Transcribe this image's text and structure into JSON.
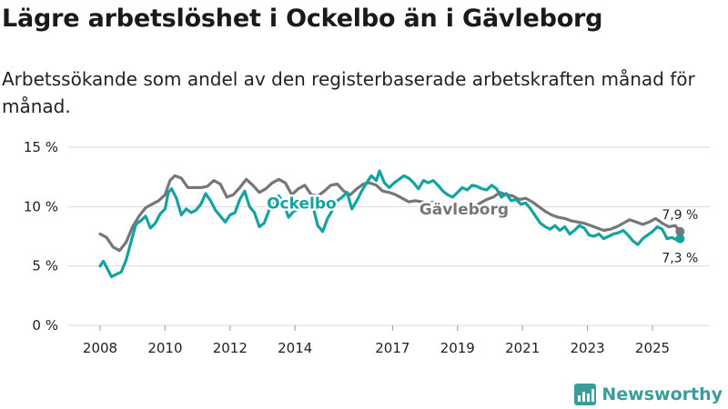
{
  "title": "Lägre arbetslöshet i Ockelbo än i Gävleborg",
  "subtitle": "Arbetssökande som andel av den registerbaserade arbetskraften månad för månad.",
  "brand": "Newsworthy",
  "colors": {
    "ockelbo": "#14a3a0",
    "gavleborg": "#777777",
    "grid": "#d9d9d9"
  },
  "chart_data": {
    "type": "line",
    "x_unit": "year (decimal)",
    "xlim": [
      2008,
      2026
    ],
    "ylim": [
      0,
      15
    ],
    "grid": true,
    "y_ticks": [
      {
        "value": 0,
        "label": "0 %"
      },
      {
        "value": 5,
        "label": "5 %"
      },
      {
        "value": 10,
        "label": "10 %"
      },
      {
        "value": 15,
        "label": "15 %"
      }
    ],
    "x_ticks": [
      {
        "value": 2008,
        "label": "2008"
      },
      {
        "value": 2010,
        "label": "2010"
      },
      {
        "value": 2012,
        "label": "2012"
      },
      {
        "value": 2014,
        "label": "2014"
      },
      {
        "value": 2017,
        "label": "2017"
      },
      {
        "value": 2019,
        "label": "2019"
      },
      {
        "value": 2021,
        "label": "2021"
      },
      {
        "value": 2023,
        "label": "2023"
      },
      {
        "value": 2025,
        "label": "2025"
      }
    ],
    "series": [
      {
        "name": "Gävleborg",
        "color": "#777777",
        "label_at": [
          2019.2,
          9.8
        ],
        "end_label": "7,9 %",
        "points": [
          [
            2008.0,
            7.7
          ],
          [
            2008.2,
            7.4
          ],
          [
            2008.4,
            6.6
          ],
          [
            2008.6,
            6.3
          ],
          [
            2008.8,
            7.0
          ],
          [
            2009.0,
            8.3
          ],
          [
            2009.2,
            9.2
          ],
          [
            2009.4,
            9.9
          ],
          [
            2009.6,
            10.2
          ],
          [
            2009.8,
            10.5
          ],
          [
            2010.0,
            11.0
          ],
          [
            2010.15,
            12.2
          ],
          [
            2010.3,
            12.6
          ],
          [
            2010.5,
            12.4
          ],
          [
            2010.7,
            11.6
          ],
          [
            2010.9,
            11.6
          ],
          [
            2011.1,
            11.6
          ],
          [
            2011.3,
            11.7
          ],
          [
            2011.5,
            12.2
          ],
          [
            2011.7,
            11.9
          ],
          [
            2011.9,
            10.8
          ],
          [
            2012.1,
            11.0
          ],
          [
            2012.3,
            11.6
          ],
          [
            2012.5,
            12.3
          ],
          [
            2012.7,
            11.8
          ],
          [
            2012.9,
            11.2
          ],
          [
            2013.1,
            11.5
          ],
          [
            2013.3,
            12.0
          ],
          [
            2013.5,
            12.3
          ],
          [
            2013.7,
            12.0
          ],
          [
            2013.9,
            11.0
          ],
          [
            2014.1,
            11.5
          ],
          [
            2014.3,
            11.8
          ],
          [
            2014.5,
            11.0
          ],
          [
            2014.7,
            10.9
          ],
          [
            2014.9,
            11.3
          ],
          [
            2015.1,
            11.8
          ],
          [
            2015.3,
            11.9
          ],
          [
            2015.5,
            11.3
          ],
          [
            2015.7,
            11.0
          ],
          [
            2015.9,
            11.5
          ],
          [
            2016.1,
            11.9
          ],
          [
            2016.3,
            12.0
          ],
          [
            2016.5,
            11.8
          ],
          [
            2016.7,
            11.3
          ],
          [
            2016.9,
            11.2
          ],
          [
            2017.1,
            11.0
          ],
          [
            2017.3,
            10.7
          ],
          [
            2017.5,
            10.4
          ],
          [
            2017.7,
            10.5
          ],
          [
            2017.9,
            10.4
          ],
          [
            2018.1,
            10.3
          ],
          [
            2018.3,
            10.4
          ],
          [
            2018.5,
            10.2
          ],
          [
            2018.7,
            9.8
          ],
          [
            2018.9,
            9.5
          ],
          [
            2019.1,
            9.4
          ],
          [
            2019.3,
            9.7
          ],
          [
            2019.5,
            10.0
          ],
          [
            2019.7,
            10.3
          ],
          [
            2019.9,
            10.6
          ],
          [
            2020.1,
            10.8
          ],
          [
            2020.3,
            11.2
          ],
          [
            2020.5,
            11.0
          ],
          [
            2020.7,
            10.9
          ],
          [
            2020.9,
            10.6
          ],
          [
            2021.1,
            10.7
          ],
          [
            2021.3,
            10.4
          ],
          [
            2021.5,
            10.0
          ],
          [
            2021.7,
            9.6
          ],
          [
            2021.9,
            9.3
          ],
          [
            2022.1,
            9.1
          ],
          [
            2022.3,
            9.0
          ],
          [
            2022.5,
            8.8
          ],
          [
            2022.7,
            8.7
          ],
          [
            2022.9,
            8.6
          ],
          [
            2023.1,
            8.4
          ],
          [
            2023.3,
            8.2
          ],
          [
            2023.5,
            8.0
          ],
          [
            2023.7,
            8.1
          ],
          [
            2023.9,
            8.3
          ],
          [
            2024.1,
            8.6
          ],
          [
            2024.3,
            8.9
          ],
          [
            2024.5,
            8.7
          ],
          [
            2024.7,
            8.5
          ],
          [
            2024.9,
            8.7
          ],
          [
            2025.1,
            9.0
          ],
          [
            2025.3,
            8.6
          ],
          [
            2025.5,
            8.3
          ],
          [
            2025.7,
            8.4
          ],
          [
            2025.85,
            7.9
          ]
        ]
      },
      {
        "name": "Ockelbo",
        "color": "#14a3a0",
        "label_at": [
          2014.2,
          10.3
        ],
        "end_label": "7,3 %",
        "points": [
          [
            2008.0,
            5.0
          ],
          [
            2008.1,
            5.4
          ],
          [
            2008.2,
            4.9
          ],
          [
            2008.35,
            4.1
          ],
          [
            2008.5,
            4.3
          ],
          [
            2008.65,
            4.5
          ],
          [
            2008.8,
            5.5
          ],
          [
            2008.95,
            7.0
          ],
          [
            2009.1,
            8.5
          ],
          [
            2009.25,
            8.8
          ],
          [
            2009.4,
            9.2
          ],
          [
            2009.55,
            8.2
          ],
          [
            2009.7,
            8.6
          ],
          [
            2009.85,
            9.4
          ],
          [
            2010.0,
            9.8
          ],
          [
            2010.1,
            11.2
          ],
          [
            2010.2,
            11.5
          ],
          [
            2010.35,
            10.7
          ],
          [
            2010.5,
            9.3
          ],
          [
            2010.65,
            9.8
          ],
          [
            2010.8,
            9.5
          ],
          [
            2010.95,
            9.7
          ],
          [
            2011.1,
            10.2
          ],
          [
            2011.25,
            11.1
          ],
          [
            2011.4,
            10.5
          ],
          [
            2011.55,
            9.7
          ],
          [
            2011.7,
            9.2
          ],
          [
            2011.85,
            8.7
          ],
          [
            2012.0,
            9.3
          ],
          [
            2012.15,
            9.5
          ],
          [
            2012.3,
            10.6
          ],
          [
            2012.45,
            11.3
          ],
          [
            2012.6,
            10.0
          ],
          [
            2012.75,
            9.5
          ],
          [
            2012.9,
            8.3
          ],
          [
            2013.05,
            8.6
          ],
          [
            2013.2,
            9.7
          ],
          [
            2013.35,
            10.5
          ],
          [
            2013.5,
            10.9
          ],
          [
            2013.65,
            10.3
          ],
          [
            2013.8,
            9.1
          ],
          [
            2013.95,
            9.6
          ],
          [
            2014.1,
            9.8
          ],
          [
            2014.25,
            10.2
          ],
          [
            2014.4,
            9.8
          ],
          [
            2014.55,
            10.0
          ],
          [
            2014.7,
            8.4
          ],
          [
            2014.85,
            7.9
          ],
          [
            2015.0,
            9.0
          ],
          [
            2015.15,
            9.7
          ],
          [
            2015.3,
            10.5
          ],
          [
            2015.45,
            10.8
          ],
          [
            2015.6,
            11.2
          ],
          [
            2015.75,
            9.8
          ],
          [
            2015.9,
            10.5
          ],
          [
            2016.05,
            11.3
          ],
          [
            2016.2,
            12.0
          ],
          [
            2016.35,
            12.6
          ],
          [
            2016.5,
            12.2
          ],
          [
            2016.6,
            13.0
          ],
          [
            2016.75,
            12.0
          ],
          [
            2016.9,
            11.6
          ],
          [
            2017.05,
            12.0
          ],
          [
            2017.2,
            12.3
          ],
          [
            2017.35,
            12.6
          ],
          [
            2017.5,
            12.4
          ],
          [
            2017.65,
            12.0
          ],
          [
            2017.8,
            11.5
          ],
          [
            2017.95,
            12.2
          ],
          [
            2018.1,
            12.0
          ],
          [
            2018.25,
            12.2
          ],
          [
            2018.4,
            11.8
          ],
          [
            2018.55,
            11.3
          ],
          [
            2018.7,
            11.0
          ],
          [
            2018.85,
            10.8
          ],
          [
            2019.0,
            11.2
          ],
          [
            2019.15,
            11.6
          ],
          [
            2019.3,
            11.4
          ],
          [
            2019.45,
            11.8
          ],
          [
            2019.6,
            11.7
          ],
          [
            2019.75,
            11.5
          ],
          [
            2019.9,
            11.4
          ],
          [
            2020.05,
            11.8
          ],
          [
            2020.2,
            11.5
          ],
          [
            2020.35,
            10.8
          ],
          [
            2020.5,
            11.1
          ],
          [
            2020.65,
            10.5
          ],
          [
            2020.8,
            10.6
          ],
          [
            2020.95,
            10.2
          ],
          [
            2021.1,
            10.3
          ],
          [
            2021.25,
            9.8
          ],
          [
            2021.4,
            9.2
          ],
          [
            2021.55,
            8.6
          ],
          [
            2021.7,
            8.3
          ],
          [
            2021.85,
            8.1
          ],
          [
            2022.0,
            8.4
          ],
          [
            2022.15,
            8.0
          ],
          [
            2022.3,
            8.3
          ],
          [
            2022.45,
            7.7
          ],
          [
            2022.6,
            8.0
          ],
          [
            2022.75,
            8.4
          ],
          [
            2022.9,
            8.2
          ],
          [
            2023.05,
            7.6
          ],
          [
            2023.2,
            7.5
          ],
          [
            2023.35,
            7.7
          ],
          [
            2023.5,
            7.3
          ],
          [
            2023.65,
            7.5
          ],
          [
            2023.8,
            7.7
          ],
          [
            2023.95,
            7.8
          ],
          [
            2024.1,
            8.0
          ],
          [
            2024.25,
            7.6
          ],
          [
            2024.4,
            7.1
          ],
          [
            2024.55,
            6.8
          ],
          [
            2024.7,
            7.3
          ],
          [
            2024.85,
            7.6
          ],
          [
            2025.0,
            7.9
          ],
          [
            2025.15,
            8.3
          ],
          [
            2025.3,
            8.1
          ],
          [
            2025.45,
            7.3
          ],
          [
            2025.6,
            7.4
          ],
          [
            2025.75,
            7.2
          ],
          [
            2025.85,
            7.3
          ]
        ]
      }
    ]
  }
}
